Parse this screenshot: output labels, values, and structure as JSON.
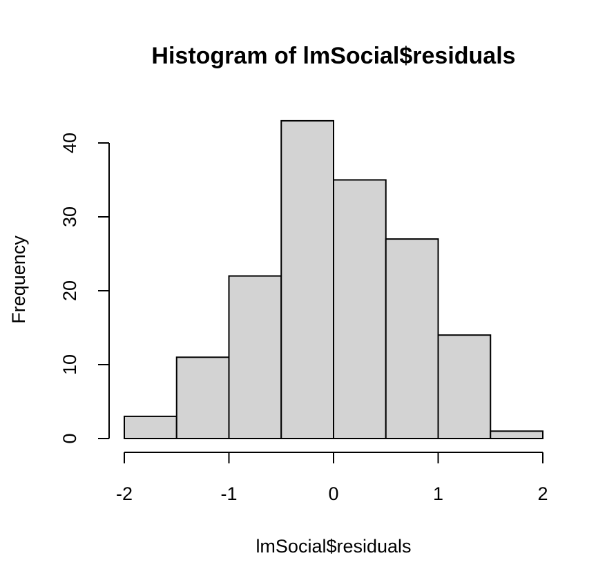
{
  "chart_data": {
    "type": "bar",
    "title": "Histogram of lmSocial$residuals",
    "xlabel": "lmSocial$residuals",
    "ylabel": "Frequency",
    "bins": [
      {
        "from": -2.0,
        "to": -1.5,
        "count": 3
      },
      {
        "from": -1.5,
        "to": -1.0,
        "count": 11
      },
      {
        "from": -1.0,
        "to": -0.5,
        "count": 22
      },
      {
        "from": -0.5,
        "to": 0.0,
        "count": 43
      },
      {
        "from": 0.0,
        "to": 0.5,
        "count": 35
      },
      {
        "from": 0.5,
        "to": 1.0,
        "count": 27
      },
      {
        "from": 1.0,
        "to": 1.5,
        "count": 14
      },
      {
        "from": 1.5,
        "to": 2.0,
        "count": 1
      }
    ],
    "xlim": [
      -2,
      2
    ],
    "ylim": [
      0,
      45
    ],
    "x_ticks": [
      -2,
      -1,
      0,
      1,
      2
    ],
    "x_tick_labels": [
      "-2",
      "-1",
      "0",
      "1",
      "2"
    ],
    "y_ticks": [
      0,
      10,
      20,
      30,
      40
    ],
    "y_tick_labels": [
      "0",
      "10",
      "20",
      "30",
      "40"
    ],
    "bar_fill": "#d3d3d3",
    "grid": false
  }
}
